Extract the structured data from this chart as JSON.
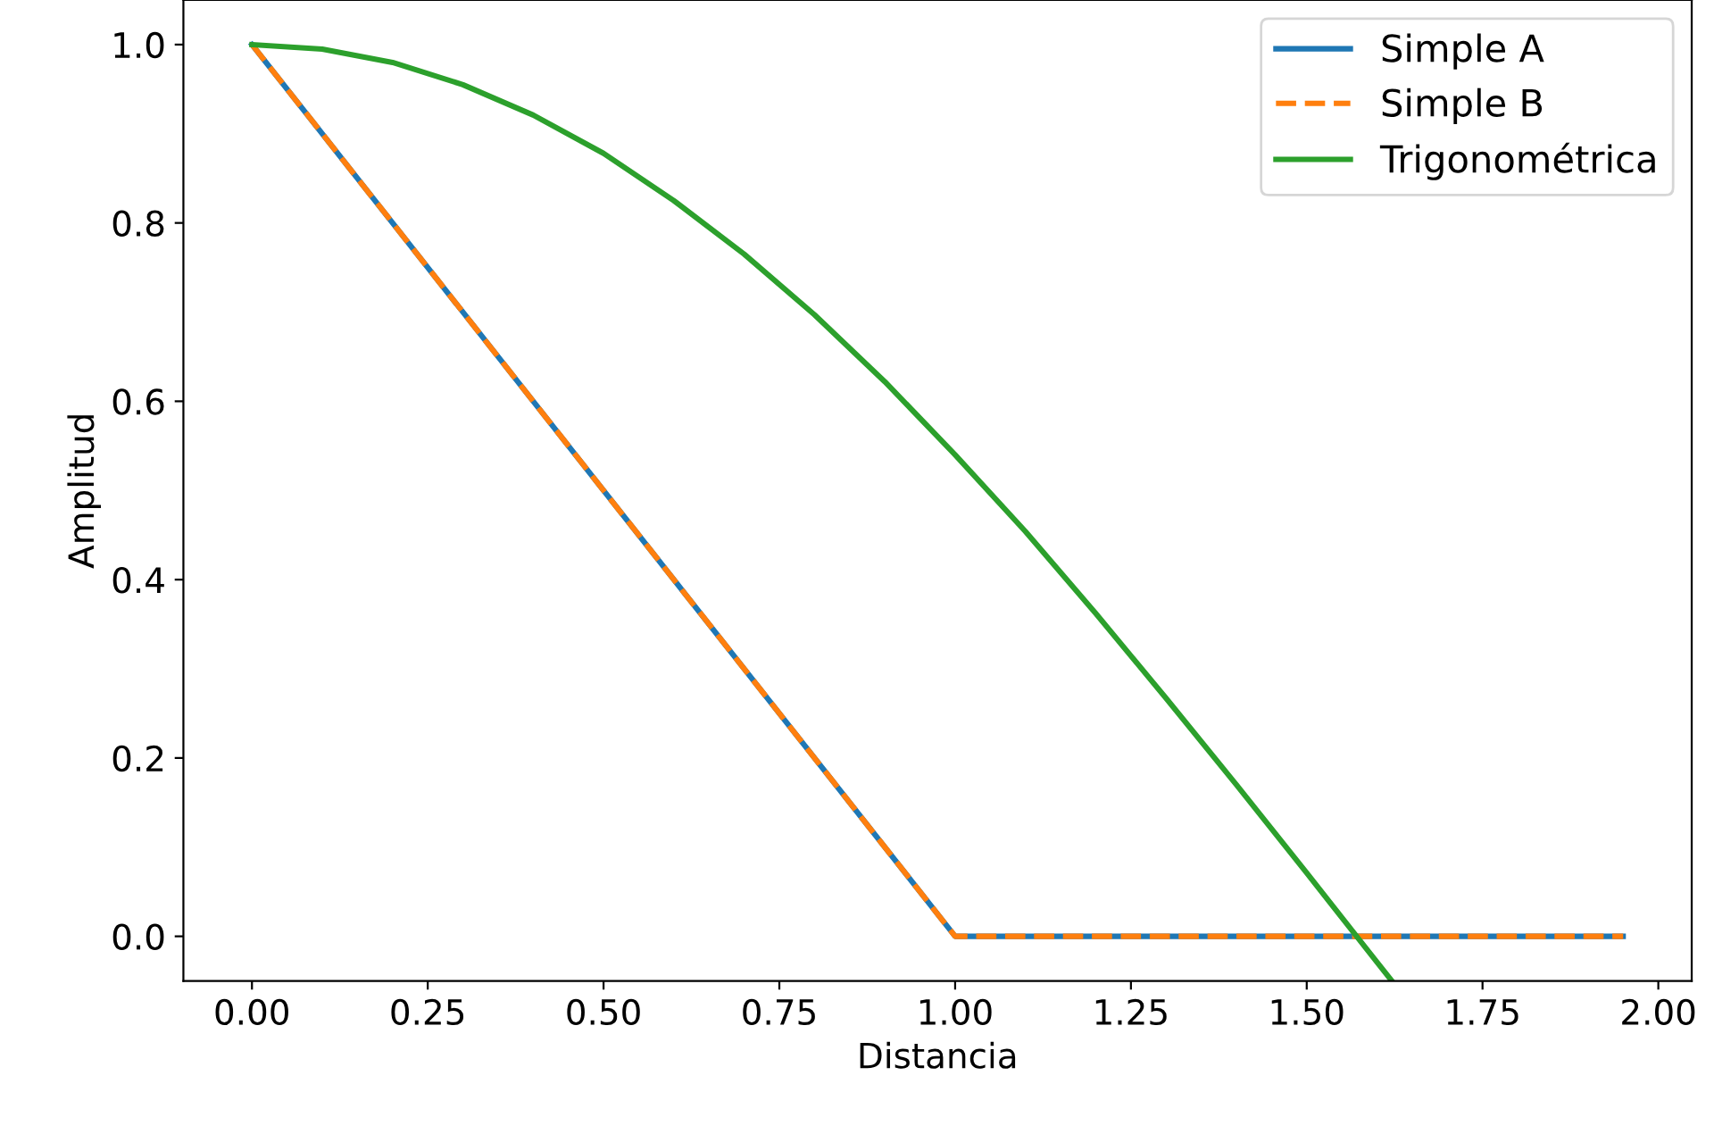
{
  "chart_data": {
    "type": "line",
    "xlabel": "Distancia",
    "ylabel": "Amplitud",
    "xlim": [
      -0.0975,
      2.0475
    ],
    "ylim": [
      -0.05,
      1.05
    ],
    "xticks": [
      {
        "value": 0,
        "label": "0.00"
      },
      {
        "value": 0.25,
        "label": "0.25"
      },
      {
        "value": 0.5,
        "label": "0.50"
      },
      {
        "value": 0.75,
        "label": "0.75"
      },
      {
        "value": 1,
        "label": "1.00"
      },
      {
        "value": 1.25,
        "label": "1.25"
      },
      {
        "value": 1.5,
        "label": "1.50"
      },
      {
        "value": 1.75,
        "label": "1.75"
      },
      {
        "value": 2,
        "label": "2.00"
      }
    ],
    "yticks": [
      {
        "value": 0,
        "label": "0.0"
      },
      {
        "value": 0.2,
        "label": "0.2"
      },
      {
        "value": 0.4,
        "label": "0.4"
      },
      {
        "value": 0.6,
        "label": "0.6"
      },
      {
        "value": 0.8,
        "label": "0.8"
      },
      {
        "value": 1,
        "label": "1.0"
      }
    ],
    "legend": "top right",
    "grid": false,
    "series": [
      {
        "name": "Simple A",
        "color": "#1f77b4",
        "line_style": "solid",
        "x": [
          0,
          1,
          1.95
        ],
        "values": [
          1,
          0,
          0
        ]
      },
      {
        "name": "Simple B",
        "color": "#ff7f0e",
        "line_style": "dashed",
        "x": [
          0,
          1,
          1.95
        ],
        "values": [
          1,
          0,
          0
        ]
      },
      {
        "name": "Trigonométrica",
        "color": "#2ca02c",
        "line_style": "solid",
        "x": [
          0,
          0.1,
          0.2,
          0.3,
          0.4,
          0.5,
          0.6,
          0.7,
          0.8,
          0.9,
          1.0,
          1.1,
          1.2,
          1.3,
          1.4,
          1.5,
          1.6,
          1.62
        ],
        "values": [
          1,
          0.995,
          0.98,
          0.955,
          0.921,
          0.878,
          0.825,
          0.765,
          0.697,
          0.622,
          0.54,
          0.454,
          0.362,
          0.267,
          0.17,
          0.071,
          -0.029,
          -0.049
        ]
      }
    ]
  }
}
